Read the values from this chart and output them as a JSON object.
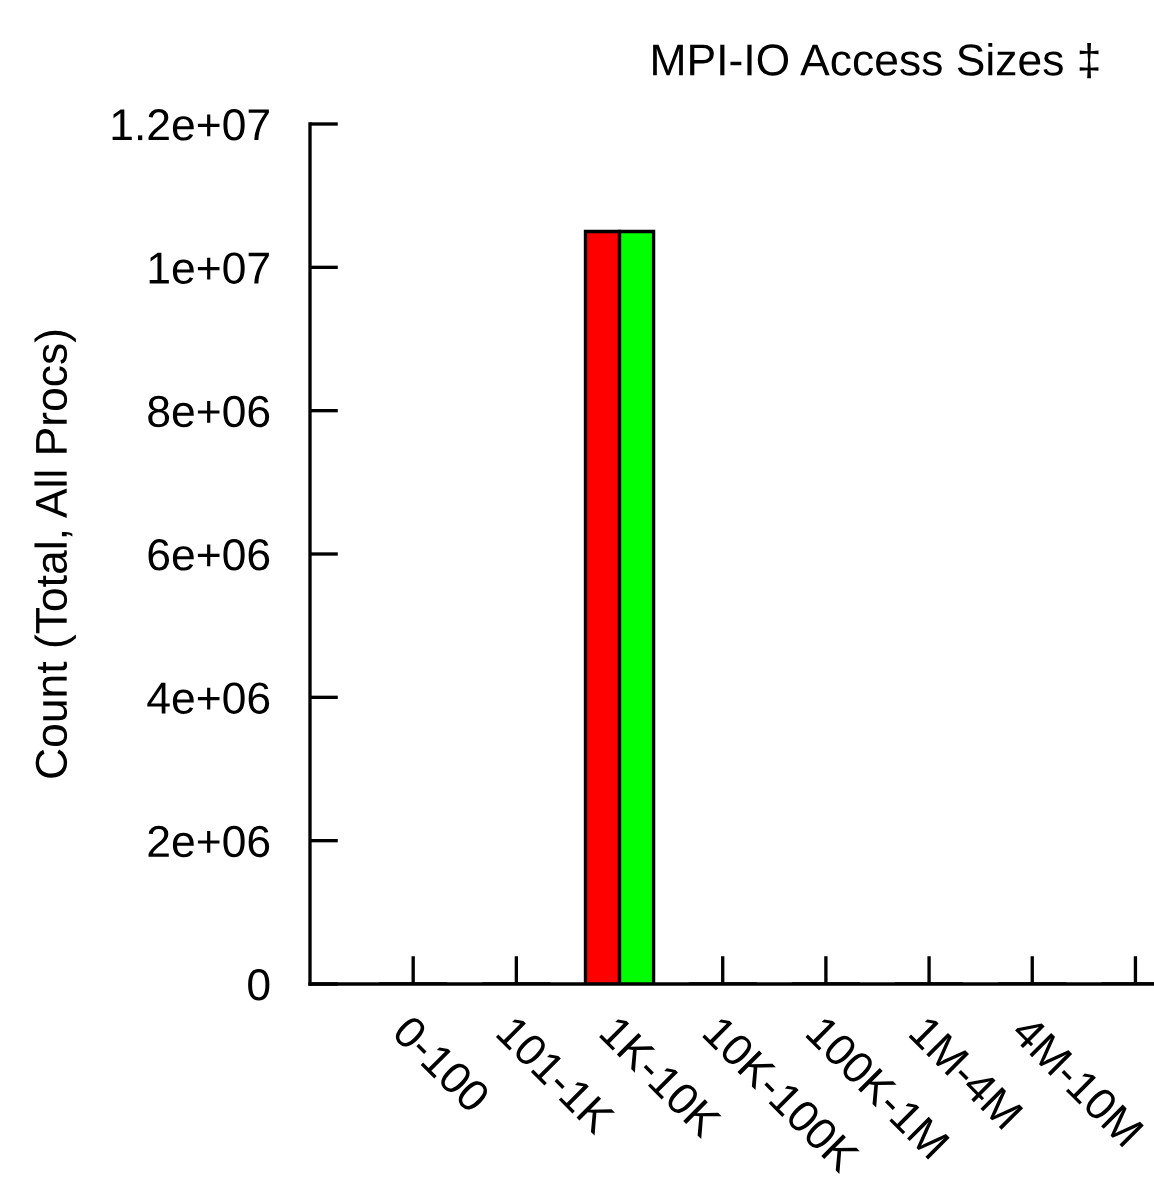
{
  "chart_data": {
    "type": "bar",
    "title": "MPI-IO Access Sizes ‡",
    "ylabel": "Count (Total, All Procs)",
    "categories": [
      "0-100",
      "101-1K",
      "1K-10K",
      "10K-100K",
      "100K-1M",
      "1M-4M",
      "4M-10M",
      null
    ],
    "series": [
      {
        "color": "#ff0000",
        "values": [
          0,
          0,
          10500000,
          0,
          0,
          0,
          0,
          0
        ]
      },
      {
        "color": "#00ff00",
        "values": [
          0,
          0,
          10500000,
          0,
          0,
          0,
          0,
          0
        ]
      }
    ],
    "ylim": [
      0,
      12000000
    ],
    "yticks": [
      0,
      {
        "value": 2000000,
        "label": "2e+06"
      },
      {
        "value": 4000000,
        "label": "4e+06"
      },
      {
        "value": 6000000,
        "label": "6e+06"
      },
      {
        "value": 8000000,
        "label": "8e+06"
      },
      {
        "value": 10000000,
        "label": "1e+07"
      },
      {
        "value": 12000000,
        "label": "1.2e+07"
      }
    ],
    "grid": false
  }
}
